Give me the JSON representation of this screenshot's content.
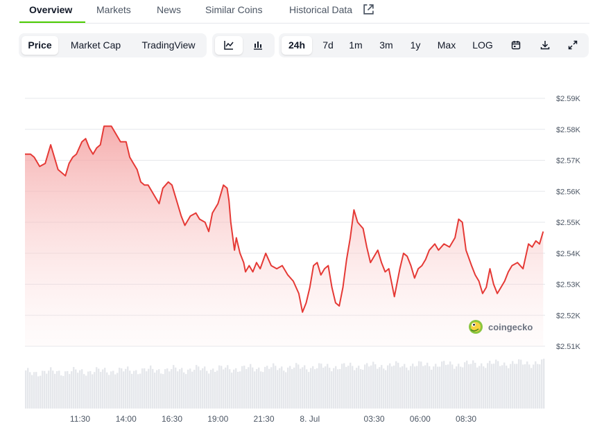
{
  "tabs": [
    {
      "label": "Overview",
      "active": true
    },
    {
      "label": "Markets"
    },
    {
      "label": "News"
    },
    {
      "label": "Similar Coins"
    },
    {
      "label": "Historical Data",
      "icon": "external-link-icon"
    }
  ],
  "toolbar": {
    "chart_types": [
      {
        "label": "Price",
        "active": true
      },
      {
        "label": "Market Cap"
      },
      {
        "label": "TradingView"
      }
    ],
    "chart_style_icons": [
      "line-chart-icon",
      "candlestick-chart-icon"
    ],
    "ranges": [
      {
        "label": "24h",
        "active": true
      },
      {
        "label": "7d"
      },
      {
        "label": "1m"
      },
      {
        "label": "3m"
      },
      {
        "label": "1y"
      },
      {
        "label": "Max"
      },
      {
        "label": "LOG"
      }
    ],
    "action_icons": [
      "calendar-icon",
      "download-icon",
      "expand-icon"
    ]
  },
  "watermark": {
    "text": "coingecko",
    "icon": "coingecko-logo-icon"
  },
  "colors": {
    "accent": "#4bcc00",
    "line": "#e53935",
    "fill": "#f6b3b3",
    "volume": "#e5e7eb",
    "grid": "#e5e7eb"
  },
  "chart_data": {
    "type": "line",
    "y_ticks": [
      "$2.51K",
      "$2.52K",
      "$2.53K",
      "$2.54K",
      "$2.55K",
      "$2.56K",
      "$2.57K",
      "$2.58K",
      "$2.59K"
    ],
    "y_tick_values": [
      2510,
      2520,
      2530,
      2540,
      2550,
      2560,
      2570,
      2580,
      2590
    ],
    "ylim": [
      2510,
      2590
    ],
    "x_ticks": [
      "11:30",
      "14:00",
      "16:30",
      "19:00",
      "21:30",
      "8. Jul",
      "03:30",
      "06:00",
      "08:30"
    ],
    "x_tick_hours": [
      11.5,
      14,
      16.5,
      19,
      21.5,
      24,
      27.5,
      30,
      32.5
    ],
    "grid": true,
    "series": [
      {
        "values": [
          [
            8.5,
            2572
          ],
          [
            8.8,
            2572
          ],
          [
            9.0,
            2571
          ],
          [
            9.3,
            2568
          ],
          [
            9.6,
            2569
          ],
          [
            9.9,
            2575
          ],
          [
            10.1,
            2571
          ],
          [
            10.3,
            2567
          ],
          [
            10.5,
            2566
          ],
          [
            10.7,
            2565
          ],
          [
            10.9,
            2569
          ],
          [
            11.1,
            2571
          ],
          [
            11.3,
            2572
          ],
          [
            11.6,
            2576
          ],
          [
            11.8,
            2577
          ],
          [
            12.0,
            2574
          ],
          [
            12.2,
            2572
          ],
          [
            12.4,
            2574
          ],
          [
            12.6,
            2575
          ],
          [
            12.8,
            2581
          ],
          [
            13.0,
            2581
          ],
          [
            13.2,
            2581
          ],
          [
            13.4,
            2579
          ],
          [
            13.7,
            2576
          ],
          [
            14.0,
            2576
          ],
          [
            14.2,
            2571
          ],
          [
            14.4,
            2569
          ],
          [
            14.6,
            2567
          ],
          [
            14.8,
            2563
          ],
          [
            15.0,
            2562
          ],
          [
            15.2,
            2562
          ],
          [
            15.4,
            2560
          ],
          [
            15.6,
            2558
          ],
          [
            15.8,
            2556
          ],
          [
            16.0,
            2561
          ],
          [
            16.3,
            2563
          ],
          [
            16.5,
            2562
          ],
          [
            16.8,
            2556
          ],
          [
            17.0,
            2552
          ],
          [
            17.2,
            2549
          ],
          [
            17.5,
            2552
          ],
          [
            17.8,
            2553
          ],
          [
            18.0,
            2551
          ],
          [
            18.3,
            2550
          ],
          [
            18.5,
            2547
          ],
          [
            18.7,
            2553
          ],
          [
            19.0,
            2556
          ],
          [
            19.3,
            2562
          ],
          [
            19.5,
            2561
          ],
          [
            19.6,
            2557
          ],
          [
            19.7,
            2550
          ],
          [
            19.9,
            2541
          ],
          [
            20.0,
            2545
          ],
          [
            20.2,
            2540
          ],
          [
            20.4,
            2537
          ],
          [
            20.5,
            2534
          ],
          [
            20.7,
            2536
          ],
          [
            20.9,
            2534
          ],
          [
            21.1,
            2537
          ],
          [
            21.3,
            2535
          ],
          [
            21.6,
            2540
          ],
          [
            21.9,
            2536
          ],
          [
            22.2,
            2535
          ],
          [
            22.5,
            2536
          ],
          [
            22.8,
            2533
          ],
          [
            23.1,
            2531
          ],
          [
            23.4,
            2527
          ],
          [
            23.6,
            2521
          ],
          [
            23.8,
            2524
          ],
          [
            24.0,
            2529
          ],
          [
            24.2,
            2536
          ],
          [
            24.4,
            2537
          ],
          [
            24.6,
            2533
          ],
          [
            24.8,
            2535
          ],
          [
            25.0,
            2536
          ],
          [
            25.2,
            2529
          ],
          [
            25.4,
            2524
          ],
          [
            25.6,
            2523
          ],
          [
            25.8,
            2529
          ],
          [
            26.0,
            2538
          ],
          [
            26.2,
            2545
          ],
          [
            26.4,
            2554
          ],
          [
            26.6,
            2550
          ],
          [
            26.9,
            2548
          ],
          [
            27.1,
            2542
          ],
          [
            27.3,
            2537
          ],
          [
            27.5,
            2539
          ],
          [
            27.7,
            2541
          ],
          [
            27.9,
            2537
          ],
          [
            28.1,
            2534
          ],
          [
            28.3,
            2535
          ],
          [
            28.6,
            2526
          ],
          [
            28.9,
            2535
          ],
          [
            29.1,
            2540
          ],
          [
            29.3,
            2539
          ],
          [
            29.5,
            2536
          ],
          [
            29.7,
            2532
          ],
          [
            29.9,
            2535
          ],
          [
            30.1,
            2536
          ],
          [
            30.3,
            2538
          ],
          [
            30.5,
            2541
          ],
          [
            30.8,
            2543
          ],
          [
            31.0,
            2541
          ],
          [
            31.3,
            2543
          ],
          [
            31.6,
            2542
          ],
          [
            31.9,
            2545
          ],
          [
            32.1,
            2551
          ],
          [
            32.3,
            2550
          ],
          [
            32.5,
            2541
          ],
          [
            32.8,
            2536
          ],
          [
            33.0,
            2533
          ],
          [
            33.2,
            2531
          ],
          [
            33.4,
            2527
          ],
          [
            33.6,
            2529
          ],
          [
            33.8,
            2535
          ],
          [
            34.0,
            2530
          ],
          [
            34.2,
            2527
          ],
          [
            34.4,
            2529
          ],
          [
            34.6,
            2531
          ],
          [
            34.8,
            2534
          ],
          [
            35.0,
            2536
          ],
          [
            35.3,
            2537
          ],
          [
            35.6,
            2535
          ],
          [
            35.9,
            2543
          ],
          [
            36.1,
            2542
          ],
          [
            36.3,
            2544
          ],
          [
            36.5,
            2543
          ],
          [
            36.7,
            2547
          ]
        ]
      }
    ],
    "volume_series": "relative trading volume bars along the bottom of the plot, roughly uniform with slight rise toward the right"
  }
}
